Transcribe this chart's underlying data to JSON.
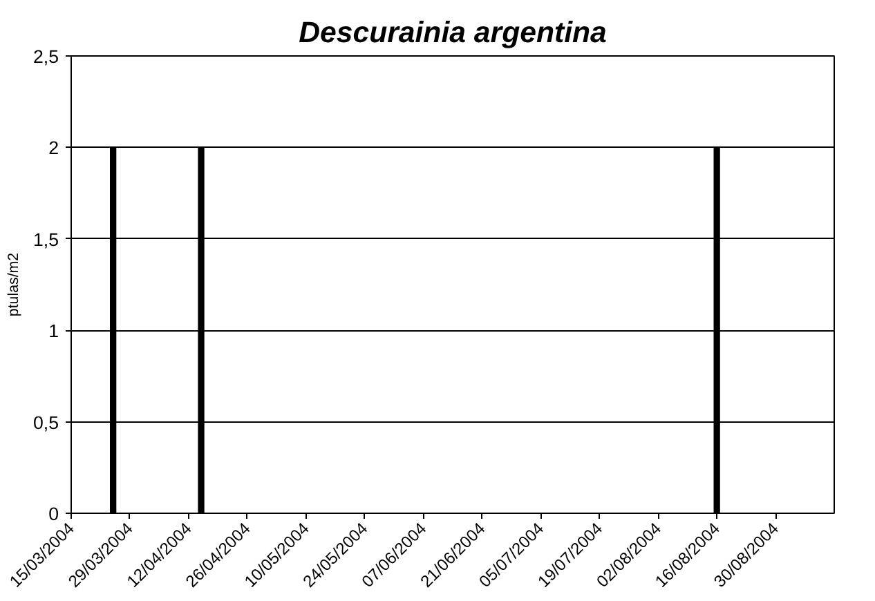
{
  "chart_data": {
    "type": "bar",
    "title": "Descurainia argentina",
    "ylabel": "ptulas/m2",
    "x": [
      "2004-03-25",
      "2004-04-15",
      "2004-08-16"
    ],
    "values": [
      2,
      2,
      2
    ],
    "color": "#000000",
    "xlim": [
      "2004-03-15",
      "2004-09-13"
    ],
    "xticks": [
      {
        "value": "2004-03-15",
        "label": "15/03/2004"
      },
      {
        "value": "2004-03-29",
        "label": "29/03/2004"
      },
      {
        "value": "2004-04-12",
        "label": "12/04/2004"
      },
      {
        "value": "2004-04-26",
        "label": "26/04/2004"
      },
      {
        "value": "2004-05-10",
        "label": "10/05/2004"
      },
      {
        "value": "2004-05-24",
        "label": "24/05/2004"
      },
      {
        "value": "2004-06-07",
        "label": "07/06/2004"
      },
      {
        "value": "2004-06-21",
        "label": "21/06/2004"
      },
      {
        "value": "2004-07-05",
        "label": "05/07/2004"
      },
      {
        "value": "2004-07-19",
        "label": "19/07/2004"
      },
      {
        "value": "2004-08-02",
        "label": "02/08/2004"
      },
      {
        "value": "2004-08-16",
        "label": "16/08/2004"
      },
      {
        "value": "2004-08-30",
        "label": "30/08/2004"
      }
    ],
    "ylim": [
      0,
      2.5
    ],
    "yticks": [
      0,
      {
        "value": 0.5,
        "label": "0,5"
      },
      1,
      {
        "value": 1.5,
        "label": "1,5"
      },
      2,
      {
        "value": 2.5,
        "label": "2,5"
      }
    ],
    "grid": "y"
  }
}
